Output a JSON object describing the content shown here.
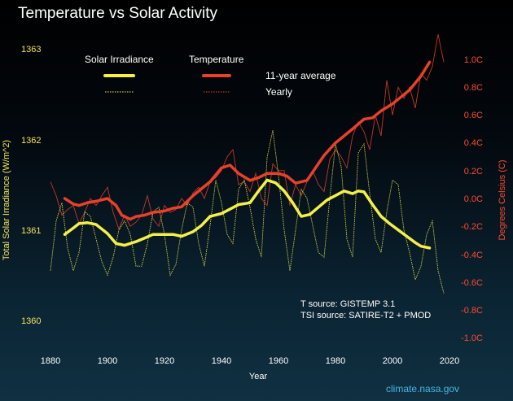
{
  "chart_data": {
    "type": "line",
    "title": "Temperature vs Solar Activity",
    "xlabel": "Year",
    "ylabel_left": "Total Solar Irradiance (W/m^2)",
    "ylabel_right": "Degrees Celsius (C)",
    "xlim": [
      1880,
      2020
    ],
    "ylim_left": [
      1360,
      1363
    ],
    "ylim_right": [
      -1.0,
      1.0
    ],
    "x_ticks": [
      "1880",
      "1900",
      "1920",
      "1940",
      "1960",
      "1980",
      "2000",
      "2020"
    ],
    "left_ticks": [
      {
        "value": 1363,
        "label": "1363"
      },
      {
        "value": 1362,
        "label": "1362"
      },
      {
        "value": 1361,
        "label": "1361"
      },
      {
        "value": 1360,
        "label": "1360"
      }
    ],
    "right_ticks": [
      {
        "value": 1.0,
        "label": "1.0C"
      },
      {
        "value": 0.8,
        "label": "0.8C"
      },
      {
        "value": 0.6,
        "label": "0.6C"
      },
      {
        "value": 0.4,
        "label": "0.4C"
      },
      {
        "value": 0.2,
        "label": "0.2C"
      },
      {
        "value": 0.0,
        "label": "0.0C"
      },
      {
        "value": -0.2,
        "label": "-0.2C"
      },
      {
        "value": -0.4,
        "label": "-0.4C"
      },
      {
        "value": -0.6,
        "label": "-0.6C"
      },
      {
        "value": -0.8,
        "label": "-0.8C"
      },
      {
        "value": -1.0,
        "label": "-1.0C"
      }
    ],
    "legend": {
      "solar_header": "Solar Irradiance",
      "temp_header": "Temperature",
      "avg_label": "11-year average",
      "yearly_label": "Yearly"
    },
    "notes": [
      "T source: GISTEMP 3.1",
      "TSI source: SATIRE-T2 + PMOD"
    ],
    "credit": "climate.nasa.gov",
    "colors": {
      "solar": "#f4f04a",
      "temperature": "#e8402a"
    },
    "series": [
      {
        "name": "Temperature",
        "kind": "11-year average",
        "axis": "right",
        "x": [
          1885,
          1888,
          1890,
          1893,
          1896,
          1900,
          1903,
          1905,
          1908,
          1910,
          1913,
          1916,
          1920,
          1923,
          1926,
          1930,
          1933,
          1936,
          1940,
          1943,
          1946,
          1950,
          1953,
          1956,
          1960,
          1963,
          1966,
          1970,
          1973,
          1976,
          1980,
          1983,
          1986,
          1990,
          1993,
          1996,
          2000,
          2003,
          2006,
          2010,
          2013
        ],
        "y": [
          0.0,
          -0.04,
          -0.05,
          -0.03,
          -0.02,
          0.0,
          -0.05,
          -0.12,
          -0.15,
          -0.13,
          -0.12,
          -0.1,
          -0.09,
          -0.07,
          -0.06,
          0.02,
          0.07,
          0.12,
          0.22,
          0.24,
          0.18,
          0.13,
          0.15,
          0.18,
          0.18,
          0.16,
          0.11,
          0.13,
          0.22,
          0.31,
          0.4,
          0.45,
          0.5,
          0.57,
          0.58,
          0.63,
          0.68,
          0.73,
          0.78,
          0.88,
          0.98
        ]
      },
      {
        "name": "Temperature",
        "kind": "Yearly",
        "axis": "right",
        "x": [
          1880,
          1882,
          1884,
          1886,
          1888,
          1890,
          1892,
          1894,
          1896,
          1898,
          1900,
          1902,
          1904,
          1906,
          1908,
          1910,
          1912,
          1914,
          1916,
          1918,
          1920,
          1922,
          1924,
          1926,
          1928,
          1930,
          1932,
          1934,
          1936,
          1938,
          1940,
          1942,
          1944,
          1946,
          1948,
          1950,
          1952,
          1954,
          1956,
          1958,
          1960,
          1962,
          1964,
          1966,
          1968,
          1970,
          1972,
          1974,
          1976,
          1978,
          1980,
          1982,
          1984,
          1986,
          1988,
          1990,
          1992,
          1994,
          1996,
          1998,
          2000,
          2002,
          2004,
          2006,
          2008,
          2010,
          2012,
          2014,
          2016,
          2018
        ],
        "y": [
          0.12,
          0.02,
          -0.12,
          -0.08,
          -0.05,
          -0.18,
          -0.1,
          0.0,
          -0.05,
          0.02,
          0.08,
          -0.1,
          -0.22,
          -0.12,
          -0.2,
          -0.17,
          -0.12,
          0.02,
          -0.15,
          -0.2,
          -0.05,
          -0.1,
          -0.08,
          0.0,
          -0.05,
          0.04,
          0.08,
          0.0,
          0.12,
          0.15,
          0.2,
          0.3,
          0.35,
          0.1,
          0.12,
          0.05,
          0.18,
          0.0,
          -0.05,
          0.25,
          0.2,
          0.2,
          -0.05,
          0.1,
          0.02,
          0.12,
          0.2,
          0.1,
          0.05,
          0.28,
          0.35,
          0.3,
          0.22,
          0.45,
          0.55,
          0.48,
          0.35,
          0.6,
          0.45,
          0.85,
          0.6,
          0.8,
          0.72,
          0.8,
          0.65,
          0.9,
          0.85,
          0.95,
          1.18,
          0.98
        ]
      },
      {
        "name": "Solar Irradiance",
        "kind": "11-year average",
        "axis": "left",
        "x": [
          1885,
          1888,
          1890,
          1893,
          1896,
          1900,
          1903,
          1906,
          1910,
          1913,
          1916,
          1920,
          1923,
          1926,
          1930,
          1933,
          1936,
          1940,
          1943,
          1946,
          1950,
          1953,
          1956,
          1959,
          1962,
          1965,
          1968,
          1971,
          1974,
          1977,
          1980,
          1983,
          1986,
          1988,
          1990,
          1993,
          1996,
          1999,
          2002,
          2005,
          2008,
          2010,
          2013
        ],
        "y": [
          1360.95,
          1361.02,
          1361.07,
          1361.08,
          1361.06,
          1360.96,
          1360.85,
          1360.83,
          1360.87,
          1360.91,
          1360.95,
          1360.95,
          1360.95,
          1360.93,
          1360.98,
          1361.05,
          1361.15,
          1361.18,
          1361.23,
          1361.28,
          1361.3,
          1361.43,
          1361.55,
          1361.52,
          1361.43,
          1361.3,
          1361.15,
          1361.17,
          1361.25,
          1361.33,
          1361.38,
          1361.43,
          1361.4,
          1361.43,
          1361.42,
          1361.28,
          1361.15,
          1361.07,
          1361.0,
          1360.93,
          1360.86,
          1360.82,
          1360.8
        ]
      },
      {
        "name": "Solar Irradiance",
        "kind": "Yearly",
        "axis": "left",
        "x": [
          1880,
          1882,
          1884,
          1886,
          1888,
          1890,
          1892,
          1894,
          1896,
          1898,
          1900,
          1902,
          1904,
          1906,
          1908,
          1910,
          1912,
          1914,
          1916,
          1918,
          1920,
          1922,
          1924,
          1926,
          1928,
          1930,
          1932,
          1934,
          1936,
          1938,
          1940,
          1942,
          1944,
          1946,
          1948,
          1950,
          1952,
          1954,
          1956,
          1958,
          1960,
          1962,
          1964,
          1966,
          1968,
          1970,
          1972,
          1974,
          1976,
          1978,
          1980,
          1982,
          1984,
          1986,
          1988,
          1990,
          1992,
          1994,
          1996,
          1998,
          2000,
          2002,
          2004,
          2006,
          2008,
          2010,
          2012,
          2014,
          2016,
          2018
        ],
        "y": [
          1360.55,
          1361.1,
          1361.3,
          1360.8,
          1360.55,
          1360.75,
          1361.2,
          1361.15,
          1360.9,
          1360.65,
          1360.5,
          1360.7,
          1361.0,
          1361.1,
          1360.95,
          1360.6,
          1360.6,
          1360.85,
          1361.2,
          1361.25,
          1360.95,
          1360.5,
          1360.62,
          1361.0,
          1361.3,
          1361.25,
          1360.85,
          1360.6,
          1361.05,
          1361.55,
          1361.3,
          1360.95,
          1360.85,
          1361.45,
          1361.55,
          1361.25,
          1360.9,
          1360.7,
          1361.8,
          1362.1,
          1361.6,
          1361.0,
          1360.55,
          1361.0,
          1361.45,
          1361.35,
          1361.05,
          1360.75,
          1360.7,
          1361.35,
          1361.95,
          1361.7,
          1360.9,
          1360.7,
          1361.85,
          1361.95,
          1361.4,
          1360.9,
          1360.75,
          1361.2,
          1361.55,
          1361.5,
          1361.0,
          1360.75,
          1360.45,
          1360.6,
          1360.95,
          1361.1,
          1360.55,
          1360.3
        ]
      }
    ]
  }
}
